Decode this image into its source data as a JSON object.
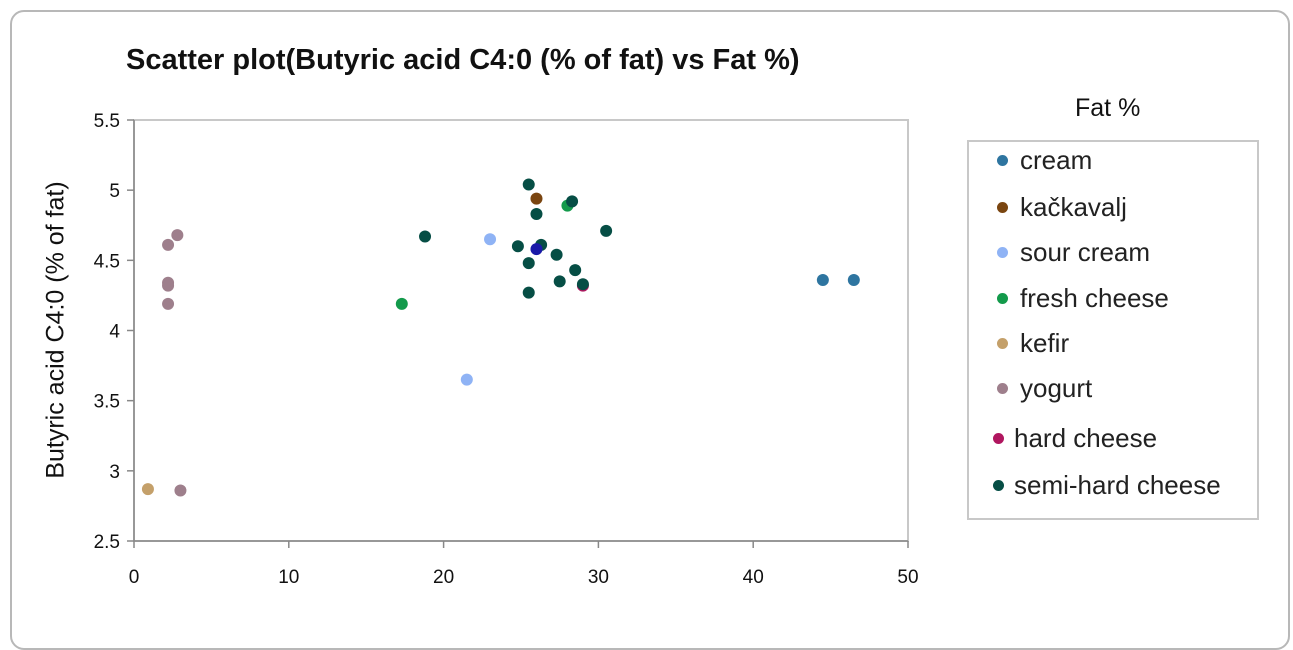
{
  "chart_data": {
    "type": "scatter",
    "title": "Scatter plot(Butyric acid C4:0 (% of fat) vs Fat %)",
    "xlabel": "",
    "ylabel": "Butyric acid C4:0 (% of fat)",
    "xlim": [
      0,
      50
    ],
    "ylim": [
      2.5,
      5.5
    ],
    "x_ticks": [
      "0",
      "10",
      "20",
      "30",
      "40",
      "50"
    ],
    "y_ticks": [
      "2.5",
      "3",
      "3.5",
      "4",
      "4.5",
      "5",
      "5.5"
    ],
    "legend_title": "Fat %",
    "legend_position": "right",
    "grid": false,
    "series": [
      {
        "name": "cream",
        "color": "#2e75a0",
        "points": [
          [
            44.5,
            4.36
          ],
          [
            46.5,
            4.36
          ]
        ]
      },
      {
        "name": "kačkavalj",
        "color": "#7a4510",
        "points": [
          [
            26.0,
            4.94
          ]
        ]
      },
      {
        "name": "sour cream",
        "color": "#8fb3f5",
        "points": [
          [
            23.0,
            4.65
          ],
          [
            21.5,
            3.65
          ]
        ]
      },
      {
        "name": "fresh cheese",
        "color": "#139a4b",
        "points": [
          [
            17.3,
            4.19
          ],
          [
            28.0,
            4.89
          ]
        ]
      },
      {
        "name": "kefir",
        "color": "#c4a06a",
        "points": [
          [
            0.9,
            2.87
          ]
        ]
      },
      {
        "name": "yogurt",
        "color": "#9e7f8c",
        "points": [
          [
            2.8,
            4.68
          ],
          [
            2.2,
            4.61
          ],
          [
            2.2,
            4.34
          ],
          [
            2.2,
            4.32
          ],
          [
            2.2,
            4.19
          ],
          [
            3.0,
            2.86
          ]
        ]
      },
      {
        "name": "hard cheese",
        "color": "#b0165f",
        "points": [
          [
            29.0,
            4.32
          ]
        ]
      },
      {
        "name": "semi-hard cheese",
        "color": "#064e45",
        "points": [
          [
            18.8,
            4.67
          ],
          [
            25.5,
            5.04
          ],
          [
            28.3,
            4.92
          ],
          [
            26.0,
            4.83
          ],
          [
            30.5,
            4.71
          ],
          [
            24.8,
            4.6
          ],
          [
            26.3,
            4.61
          ],
          [
            27.3,
            4.54
          ],
          [
            25.5,
            4.48
          ],
          [
            28.5,
            4.43
          ],
          [
            27.5,
            4.35
          ],
          [
            29.0,
            4.33
          ],
          [
            25.5,
            4.27
          ]
        ]
      },
      {
        "name": "",
        "color": "#1a1aa8",
        "points": [
          [
            26.0,
            4.58
          ]
        ]
      }
    ]
  }
}
